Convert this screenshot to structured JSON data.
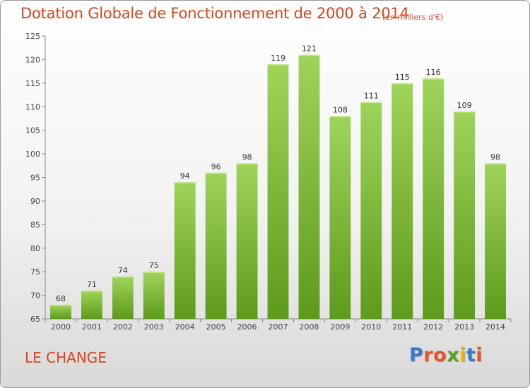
{
  "header": {
    "title": "Dotation Globale de Fonctionnement de 2000 à 2014",
    "subtitle": "(en milliers d'€)"
  },
  "footer": {
    "commune": "LE CHANGE",
    "logo_letters": [
      "P",
      "r",
      "o",
      "x",
      "i",
      "t",
      "i"
    ],
    "logo_colors": [
      "#3a78c9",
      "#e8542a",
      "#e8542a",
      "#5aa02c",
      "#f0b400",
      "#3a78c9",
      "#e8542a"
    ]
  },
  "chart_data": {
    "type": "bar",
    "title": "Dotation Globale de Fonctionnement de 2000 à 2014",
    "subtitle": "(en milliers d'€)",
    "xlabel": "",
    "ylabel": "",
    "categories": [
      "2000",
      "2001",
      "2002",
      "2003",
      "2004",
      "2005",
      "2006",
      "2007",
      "2008",
      "2009",
      "2010",
      "2011",
      "2012",
      "2013",
      "2014"
    ],
    "values": [
      68,
      71,
      74,
      75,
      94,
      96,
      98,
      119,
      121,
      108,
      111,
      115,
      116,
      109,
      98
    ],
    "ylim": [
      65,
      125
    ],
    "yticks": [
      65,
      70,
      75,
      80,
      85,
      90,
      95,
      100,
      105,
      110,
      115,
      120,
      125
    ],
    "grid": false,
    "bar_color_top": "#9fd45a",
    "bar_color_bottom": "#5e9a1c"
  }
}
